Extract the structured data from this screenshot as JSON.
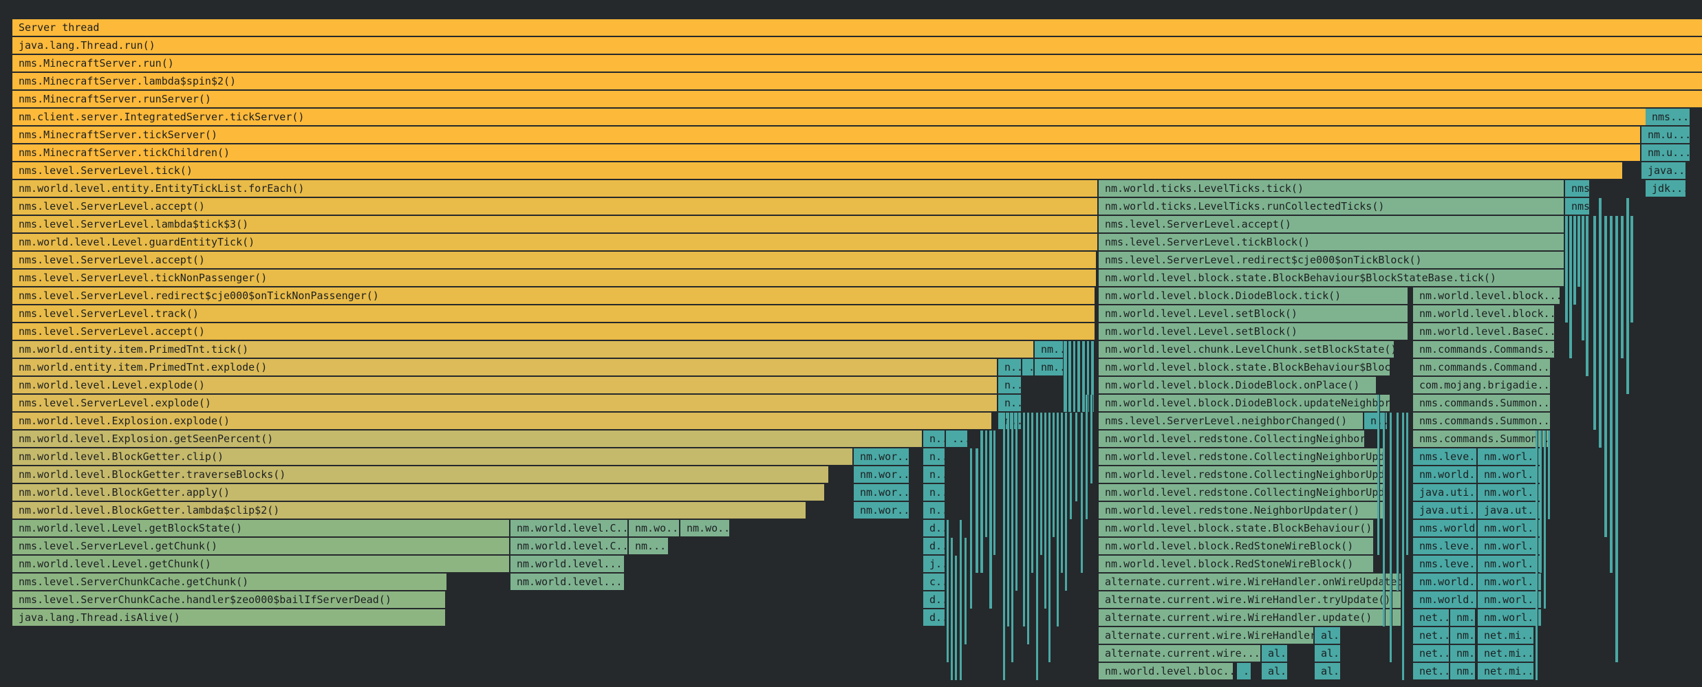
{
  "colors": {
    "background": "#25292c",
    "root": "#fdb93a",
    "hot": "#f5ba3d",
    "warm": "#e9bb48",
    "mild": "#dcbb58",
    "cool": "#c5b96b",
    "mid": "#9fb47c",
    "green": "#8db582",
    "teal": "#7fb390",
    "dkteal": "#4aa9a5",
    "cyan": "#3aa8ac"
  },
  "frames": [
    {
      "id": "f0",
      "label": "Server thread",
      "color": "root"
    },
    {
      "id": "f1",
      "label": "java.lang.Thread.run()",
      "color": "root"
    },
    {
      "id": "f2",
      "label": "nms.MinecraftServer.run()",
      "color": "root"
    },
    {
      "id": "f3",
      "label": "nms.MinecraftServer.lambda$spin$2()",
      "color": "root"
    },
    {
      "id": "f4",
      "label": "nms.MinecraftServer.runServer()",
      "color": "root"
    },
    {
      "id": "f5",
      "label": "nm.client.server.IntegratedServer.tickServer()",
      "color": "root"
    },
    {
      "id": "f5b",
      "label": "nms...",
      "color": "dkteal"
    },
    {
      "id": "f6",
      "label": "nms.MinecraftServer.tickServer()",
      "color": "root"
    },
    {
      "id": "f6b",
      "label": "nm.u...",
      "color": "dkteal"
    },
    {
      "id": "f7",
      "label": "nms.MinecraftServer.tickChildren()",
      "color": "root"
    },
    {
      "id": "f7b",
      "label": "nm.u...",
      "color": "dkteal"
    },
    {
      "id": "f8",
      "label": "nms.level.ServerLevel.tick()",
      "color": "hot"
    },
    {
      "id": "f8b",
      "label": "java...",
      "color": "dkteal"
    },
    {
      "id": "f9",
      "label": "nm.world.level.entity.EntityTickList.forEach()",
      "color": "warm"
    },
    {
      "id": "f9b",
      "label": "nm.world.ticks.LevelTicks.tick()",
      "color": "teal"
    },
    {
      "id": "f9c",
      "label": "nms...",
      "color": "dkteal"
    },
    {
      "id": "f9d",
      "label": "jdk...",
      "color": "dkteal"
    },
    {
      "id": "f10",
      "label": "nms.level.ServerLevel.accept()",
      "color": "warm"
    },
    {
      "id": "f10b",
      "label": "nm.world.ticks.LevelTicks.runCollectedTicks()",
      "color": "teal"
    },
    {
      "id": "f10c",
      "label": "nms...",
      "color": "dkteal"
    },
    {
      "id": "f11",
      "label": "nms.level.ServerLevel.lambda$tick$3()",
      "color": "warm"
    },
    {
      "id": "f11b",
      "label": "nms.level.ServerLevel.accept()",
      "color": "teal"
    },
    {
      "id": "f12",
      "label": "nm.world.level.Level.guardEntityTick()",
      "color": "warm"
    },
    {
      "id": "f12b",
      "label": "nms.level.ServerLevel.tickBlock()",
      "color": "teal"
    },
    {
      "id": "f13",
      "label": "nms.level.ServerLevel.accept()",
      "color": "warm"
    },
    {
      "id": "f13b",
      "label": "nms.level.ServerLevel.redirect$cje000$onTickBlock()",
      "color": "teal"
    },
    {
      "id": "f14",
      "label": "nms.level.ServerLevel.tickNonPassenger()",
      "color": "warm"
    },
    {
      "id": "f14b",
      "label": "nm.world.level.block.state.BlockBehaviour$BlockStateBase.tick()",
      "color": "teal"
    },
    {
      "id": "f15",
      "label": "nms.level.ServerLevel.redirect$cje000$onTickNonPassenger()",
      "color": "warm"
    },
    {
      "id": "f15b",
      "label": "nm.world.level.block.DiodeBlock.tick()",
      "color": "teal"
    },
    {
      "id": "f15c",
      "label": "nm.world.level.block...",
      "color": "teal"
    },
    {
      "id": "f16",
      "label": "nms.level.ServerLevel.track()",
      "color": "warm"
    },
    {
      "id": "f16b",
      "label": "nm.world.level.Level.setBlock()",
      "color": "teal"
    },
    {
      "id": "f16c",
      "label": "nm.world.level.block...",
      "color": "teal"
    },
    {
      "id": "f17",
      "label": "nms.level.ServerLevel.accept()",
      "color": "warm"
    },
    {
      "id": "f17b",
      "label": "nm.world.level.Level.setBlock()",
      "color": "teal"
    },
    {
      "id": "f17c",
      "label": "nm.world.level.BaseC...",
      "color": "teal"
    },
    {
      "id": "f18",
      "label": "nm.world.entity.item.PrimedTnt.tick()",
      "color": "mild"
    },
    {
      "id": "f18b",
      "label": "nm...",
      "color": "dkteal"
    },
    {
      "id": "f18c",
      "label": "nm.world.level.chunk.LevelChunk.setBlockState()",
      "color": "teal"
    },
    {
      "id": "f18d",
      "label": "nm.commands.Commands...",
      "color": "teal"
    },
    {
      "id": "f19",
      "label": "nm.world.entity.item.PrimedTnt.explode()",
      "color": "mild"
    },
    {
      "id": "f19b",
      "label": "n...",
      "color": "dkteal"
    },
    {
      "id": "f19c",
      "label": "...",
      "color": "dkteal"
    },
    {
      "id": "f19d",
      "label": "nm...",
      "color": "dkteal"
    },
    {
      "id": "f19e",
      "label": "nm.world.level.block.state.BlockBehaviour$BlockStateBase()",
      "color": "teal"
    },
    {
      "id": "f19f",
      "label": "nm.commands.Command...",
      "color": "teal"
    },
    {
      "id": "f20",
      "label": "nm.world.level.Level.explode()",
      "color": "mild"
    },
    {
      "id": "f20b",
      "label": "n...",
      "color": "dkteal"
    },
    {
      "id": "f20c",
      "label": "nm.world.level.block.DiodeBlock.onPlace()",
      "color": "teal"
    },
    {
      "id": "f20d",
      "label": "com.mojang.brigadie...",
      "color": "teal"
    },
    {
      "id": "f21",
      "label": "nms.level.ServerLevel.explode()",
      "color": "mild"
    },
    {
      "id": "f21b",
      "label": "n...",
      "color": "dkteal"
    },
    {
      "id": "f21c",
      "label": "nm.world.level.block.DiodeBlock.updateNeighbors()",
      "color": "teal"
    },
    {
      "id": "f21d",
      "label": "nms.commands.Summon...",
      "color": "teal"
    },
    {
      "id": "f22",
      "label": "nm.world.level.Explosion.explode()",
      "color": "mild"
    },
    {
      "id": "f22b",
      "label": "n...",
      "color": "dkteal"
    },
    {
      "id": "f22c",
      "label": "nms.level.ServerLevel.neighborChanged()",
      "color": "teal"
    },
    {
      "id": "f22d",
      "label": "n...",
      "color": "dkteal"
    },
    {
      "id": "f22e",
      "label": "nms.commands.Summon...",
      "color": "teal"
    },
    {
      "id": "f23",
      "label": "nm.world.level.Explosion.getSeenPercent()",
      "color": "cool"
    },
    {
      "id": "f23b",
      "label": "n...",
      "color": "dkteal"
    },
    {
      "id": "f23c",
      "label": "...",
      "color": "dkteal"
    },
    {
      "id": "f23d",
      "label": "nm.world.level.redstone.CollectingNeighborUpdater()",
      "color": "teal"
    },
    {
      "id": "f23e",
      "label": "nms.commands.Summon...",
      "color": "teal"
    },
    {
      "id": "f24",
      "label": "nm.world.level.BlockGetter.clip()",
      "color": "cool"
    },
    {
      "id": "f24b",
      "label": "nm.wor...",
      "color": "dkteal"
    },
    {
      "id": "f24c",
      "label": "n...",
      "color": "dkteal"
    },
    {
      "id": "f24d",
      "label": "nm.world.level.redstone.CollectingNeighborUpdater()",
      "color": "teal"
    },
    {
      "id": "f24e",
      "label": "nms.leve...",
      "color": "dkteal"
    },
    {
      "id": "f24f",
      "label": "nm.worl...",
      "color": "dkteal"
    },
    {
      "id": "f25",
      "label": "nm.world.level.BlockGetter.traverseBlocks()",
      "color": "cool"
    },
    {
      "id": "f25b",
      "label": "nm.wor...",
      "color": "dkteal"
    },
    {
      "id": "f25c",
      "label": "n...",
      "color": "dkteal"
    },
    {
      "id": "f25d",
      "label": "nm.world.level.redstone.CollectingNeighborUpdater()",
      "color": "teal"
    },
    {
      "id": "f25e",
      "label": "nm.world...",
      "color": "dkteal"
    },
    {
      "id": "f25f",
      "label": "nm.worl...",
      "color": "dkteal"
    },
    {
      "id": "f26",
      "label": "nm.world.level.BlockGetter.apply()",
      "color": "cool"
    },
    {
      "id": "f26b",
      "label": "nm.wor...",
      "color": "dkteal"
    },
    {
      "id": "f26c",
      "label": "n...",
      "color": "dkteal"
    },
    {
      "id": "f26d",
      "label": "nm.world.level.redstone.CollectingNeighborUpdater()",
      "color": "teal"
    },
    {
      "id": "f26e",
      "label": "java.uti...",
      "color": "dkteal"
    },
    {
      "id": "f26f",
      "label": "nm.worl...",
      "color": "dkteal"
    },
    {
      "id": "f27",
      "label": "nm.world.level.BlockGetter.lambda$clip$2()",
      "color": "cool"
    },
    {
      "id": "f27b",
      "label": "nm.wor...",
      "color": "dkteal"
    },
    {
      "id": "f27c",
      "label": "n...",
      "color": "dkteal"
    },
    {
      "id": "f27d",
      "label": "nm.world.level.redstone.NeighborUpdater()",
      "color": "teal"
    },
    {
      "id": "f27e",
      "label": "java.uti...",
      "color": "dkteal"
    },
    {
      "id": "f27f",
      "label": "java.ut...",
      "color": "dkteal"
    },
    {
      "id": "f28",
      "label": "nm.world.level.Level.getBlockState()",
      "color": "green"
    },
    {
      "id": "f28b",
      "label": "nm.world.level.C...",
      "color": "teal"
    },
    {
      "id": "f28c",
      "label": "nm.wo...",
      "color": "teal"
    },
    {
      "id": "f28d",
      "label": "nm.wo...",
      "color": "teal"
    },
    {
      "id": "f28e",
      "label": "d...",
      "color": "dkteal"
    },
    {
      "id": "f28f",
      "label": "nm.world.level.block.state.BlockBehaviour()",
      "color": "teal"
    },
    {
      "id": "f28g",
      "label": "nms.world...",
      "color": "dkteal"
    },
    {
      "id": "f28h",
      "label": "nm.worl...",
      "color": "dkteal"
    },
    {
      "id": "f29",
      "label": "nms.level.ServerLevel.getChunk()",
      "color": "green"
    },
    {
      "id": "f29b",
      "label": "nm.world.level.C...",
      "color": "teal"
    },
    {
      "id": "f29c",
      "label": "nm...",
      "color": "teal"
    },
    {
      "id": "f29d",
      "label": "d...",
      "color": "dkteal"
    },
    {
      "id": "f29e",
      "label": "nm.world.level.block.RedStoneWireBlock()",
      "color": "teal"
    },
    {
      "id": "f29f",
      "label": "nms.leve...",
      "color": "dkteal"
    },
    {
      "id": "f29g",
      "label": "nm.worl...",
      "color": "dkteal"
    },
    {
      "id": "f30",
      "label": "nm.world.level.Level.getChunk()",
      "color": "green"
    },
    {
      "id": "f30b",
      "label": "nm.world.level...",
      "color": "teal"
    },
    {
      "id": "f30c",
      "label": "j...",
      "color": "dkteal"
    },
    {
      "id": "f30d",
      "label": "nm.world.level.block.RedStoneWireBlock()",
      "color": "teal"
    },
    {
      "id": "f30e",
      "label": "nms.leve...",
      "color": "dkteal"
    },
    {
      "id": "f30f",
      "label": "nm.worl...",
      "color": "dkteal"
    },
    {
      "id": "f31",
      "label": "nms.level.ServerChunkCache.getChunk()",
      "color": "green"
    },
    {
      "id": "f31b",
      "label": "nm.world.level...",
      "color": "teal"
    },
    {
      "id": "f31c",
      "label": "c...",
      "color": "dkteal"
    },
    {
      "id": "f31d",
      "label": "alternate.current.wire.WireHandler.onWireUpdated()",
      "color": "teal"
    },
    {
      "id": "f31e",
      "label": "nm.world...",
      "color": "dkteal"
    },
    {
      "id": "f31f",
      "label": "nm.worl...",
      "color": "dkteal"
    },
    {
      "id": "f32",
      "label": "nms.level.ServerChunkCache.handler$zeo000$bailIfServerDead()",
      "color": "green"
    },
    {
      "id": "f32b",
      "label": "d...",
      "color": "dkteal"
    },
    {
      "id": "f32c",
      "label": "alternate.current.wire.WireHandler.tryUpdate()",
      "color": "teal"
    },
    {
      "id": "f32d",
      "label": "nm.world...",
      "color": "dkteal"
    },
    {
      "id": "f32e",
      "label": "nm.worl...",
      "color": "dkteal"
    },
    {
      "id": "f33",
      "label": "java.lang.Thread.isAlive()",
      "color": "green"
    },
    {
      "id": "f33b",
      "label": "d...",
      "color": "dkteal"
    },
    {
      "id": "f33c",
      "label": "alternate.current.wire.WireHandler.update()",
      "color": "teal"
    },
    {
      "id": "f33d",
      "label": "net...",
      "color": "dkteal"
    },
    {
      "id": "f33e",
      "label": "nm...",
      "color": "dkteal"
    },
    {
      "id": "f33f",
      "label": "nm.worl...",
      "color": "dkteal"
    },
    {
      "id": "f34",
      "label": "alternate.current.wire.WireHandler()",
      "color": "teal"
    },
    {
      "id": "f34b",
      "label": "al...",
      "color": "dkteal"
    },
    {
      "id": "f34c",
      "label": "net...",
      "color": "dkteal"
    },
    {
      "id": "f34d",
      "label": "nm...",
      "color": "dkteal"
    },
    {
      "id": "f34e",
      "label": "net.mi...",
      "color": "dkteal"
    },
    {
      "id": "f35",
      "label": "alternate.current.wire...",
      "color": "teal"
    },
    {
      "id": "f35b",
      "label": "al...",
      "color": "dkteal"
    },
    {
      "id": "f35c",
      "label": "al...",
      "color": "dkteal"
    },
    {
      "id": "f35d",
      "label": "net...",
      "color": "dkteal"
    },
    {
      "id": "f35e",
      "label": "nm...",
      "color": "dkteal"
    },
    {
      "id": "f35f",
      "label": "net.mi...",
      "color": "dkteal"
    },
    {
      "id": "f36",
      "label": "nm.world.level.bloc...",
      "color": "teal"
    },
    {
      "id": "f36b",
      "label": "...",
      "color": "dkteal"
    },
    {
      "id": "f36c",
      "label": "al...",
      "color": "dkteal"
    },
    {
      "id": "f36d",
      "label": "al...",
      "color": "dkteal"
    },
    {
      "id": "f36e",
      "label": "net...",
      "color": "dkteal"
    },
    {
      "id": "f36f",
      "label": "nm...",
      "color": "dkteal"
    },
    {
      "id": "f36g",
      "label": "net.mi...",
      "color": "dkteal"
    }
  ]
}
